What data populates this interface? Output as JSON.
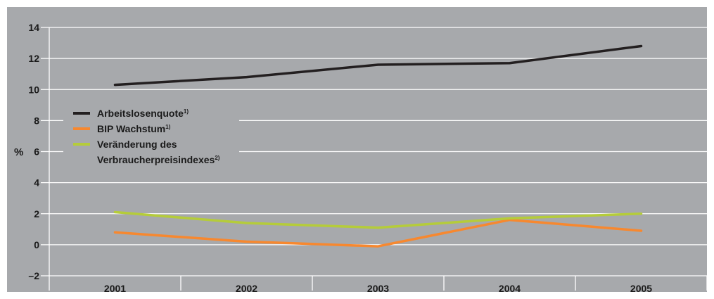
{
  "chart_data": {
    "type": "line",
    "x": [
      "2001",
      "2002",
      "2003",
      "2004",
      "2005"
    ],
    "ylabel": "%",
    "ylim": [
      -2,
      14
    ],
    "yticks": [
      "14",
      "12",
      "10",
      "8",
      "6",
      "4",
      "2",
      "0",
      "–2"
    ],
    "grid": true,
    "legend_position": "left",
    "background_color": "#a7a9ac",
    "series": [
      {
        "name": "Arbeitslosenquote",
        "note": "1)",
        "color": "#231f20",
        "values": [
          10.3,
          10.8,
          11.6,
          11.7,
          12.8
        ]
      },
      {
        "name": "BIP Wachstum",
        "note": "1)",
        "color": "#f7882f",
        "values": [
          0.8,
          0.2,
          -0.1,
          1.6,
          0.9
        ]
      },
      {
        "name": "Veränderung des Verbraucherpreisindexes",
        "name_lines": [
          "Veränderung des",
          "Verbraucherpreisindexes"
        ],
        "note": "2)",
        "color": "#b5cc3a",
        "values": [
          2.1,
          1.4,
          1.1,
          1.7,
          2.0
        ]
      }
    ]
  }
}
